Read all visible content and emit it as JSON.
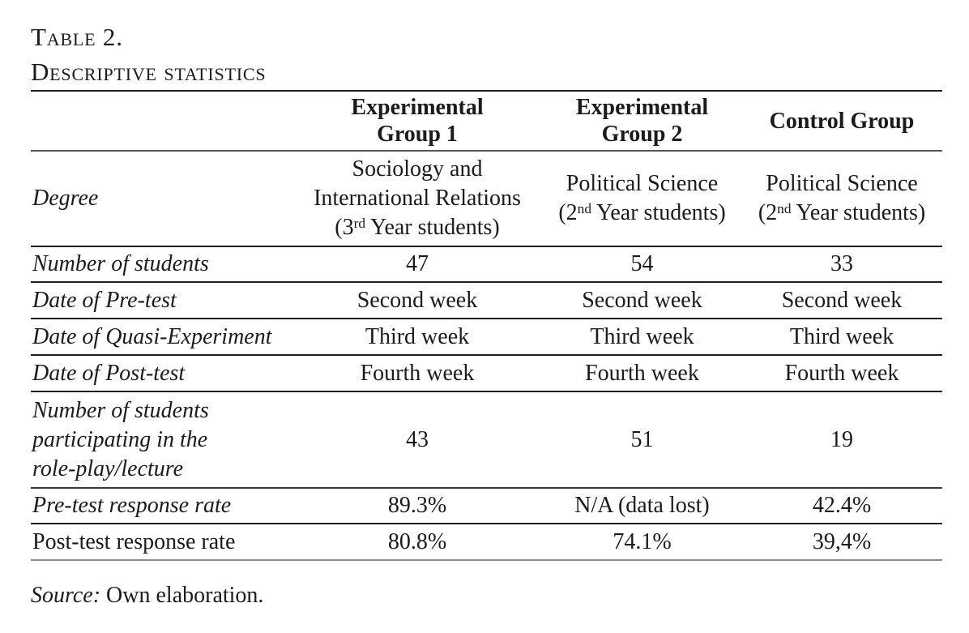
{
  "page": {
    "title_line1": "Table 2.",
    "title_line2": "Descriptive statistics"
  },
  "table": {
    "headers": [
      "",
      "Experimental\nGroup 1",
      "Experimental\nGroup 2",
      "Control Group"
    ],
    "rows": [
      {
        "label": "Degree",
        "italic": true,
        "cells": [
          {
            "lines": [
              [
                "Sociology and"
              ],
              [
                "International Relations"
              ],
              [
                "(3",
                {
                  "sup": "rd"
                },
                " Year students)"
              ]
            ]
          },
          {
            "lines": [
              [
                "Political Science"
              ],
              [
                "(2",
                {
                  "sup": "nd"
                },
                " Year students)"
              ]
            ]
          },
          {
            "lines": [
              [
                "Political Science"
              ],
              [
                "(2",
                {
                  "sup": "nd"
                },
                " Year students)"
              ]
            ]
          }
        ]
      },
      {
        "label": "Number of students",
        "italic": true,
        "cells": [
          {
            "lines": [
              [
                "47"
              ]
            ]
          },
          {
            "lines": [
              [
                "54"
              ]
            ]
          },
          {
            "lines": [
              [
                "33"
              ]
            ]
          }
        ]
      },
      {
        "label": "Date of Pre-test",
        "italic": true,
        "cells": [
          {
            "lines": [
              [
                "Second week"
              ]
            ]
          },
          {
            "lines": [
              [
                "Second week"
              ]
            ]
          },
          {
            "lines": [
              [
                "Second week"
              ]
            ]
          }
        ]
      },
      {
        "label": "Date of Quasi-Experiment",
        "italic": true,
        "cells": [
          {
            "lines": [
              [
                "Third week"
              ]
            ]
          },
          {
            "lines": [
              [
                "Third week"
              ]
            ]
          },
          {
            "lines": [
              [
                "Third week"
              ]
            ]
          }
        ]
      },
      {
        "label": "Date of Post-test",
        "italic": true,
        "cells": [
          {
            "lines": [
              [
                "Fourth week"
              ]
            ]
          },
          {
            "lines": [
              [
                "Fourth week"
              ]
            ]
          },
          {
            "lines": [
              [
                "Fourth week"
              ]
            ]
          }
        ]
      },
      {
        "label": "Number of students\nparticipating in the\nrole-play/lecture",
        "italic": true,
        "cells": [
          {
            "lines": [
              [
                "43"
              ]
            ]
          },
          {
            "lines": [
              [
                "51"
              ]
            ]
          },
          {
            "lines": [
              [
                "19"
              ]
            ]
          }
        ]
      },
      {
        "label": "Pre-test response rate",
        "italic": true,
        "cells": [
          {
            "lines": [
              [
                "89.3%"
              ]
            ]
          },
          {
            "lines": [
              [
                "N/A (data lost)"
              ]
            ]
          },
          {
            "lines": [
              [
                "42.4%"
              ]
            ]
          }
        ]
      },
      {
        "label": "Post-test response rate",
        "italic": false,
        "cells": [
          {
            "lines": [
              [
                "80.8%"
              ]
            ]
          },
          {
            "lines": [
              [
                "74.1%"
              ]
            ]
          },
          {
            "lines": [
              [
                "39,4%"
              ]
            ]
          }
        ]
      }
    ]
  },
  "note": {
    "label": "Source:",
    "text": " Own elaboration."
  },
  "colors": {
    "text": "#1b1b1b",
    "rule_dark": "#1f1f1f",
    "rule_medium": "#565656",
    "rule_light": "#8d8d8d",
    "background": "#ffffff"
  }
}
